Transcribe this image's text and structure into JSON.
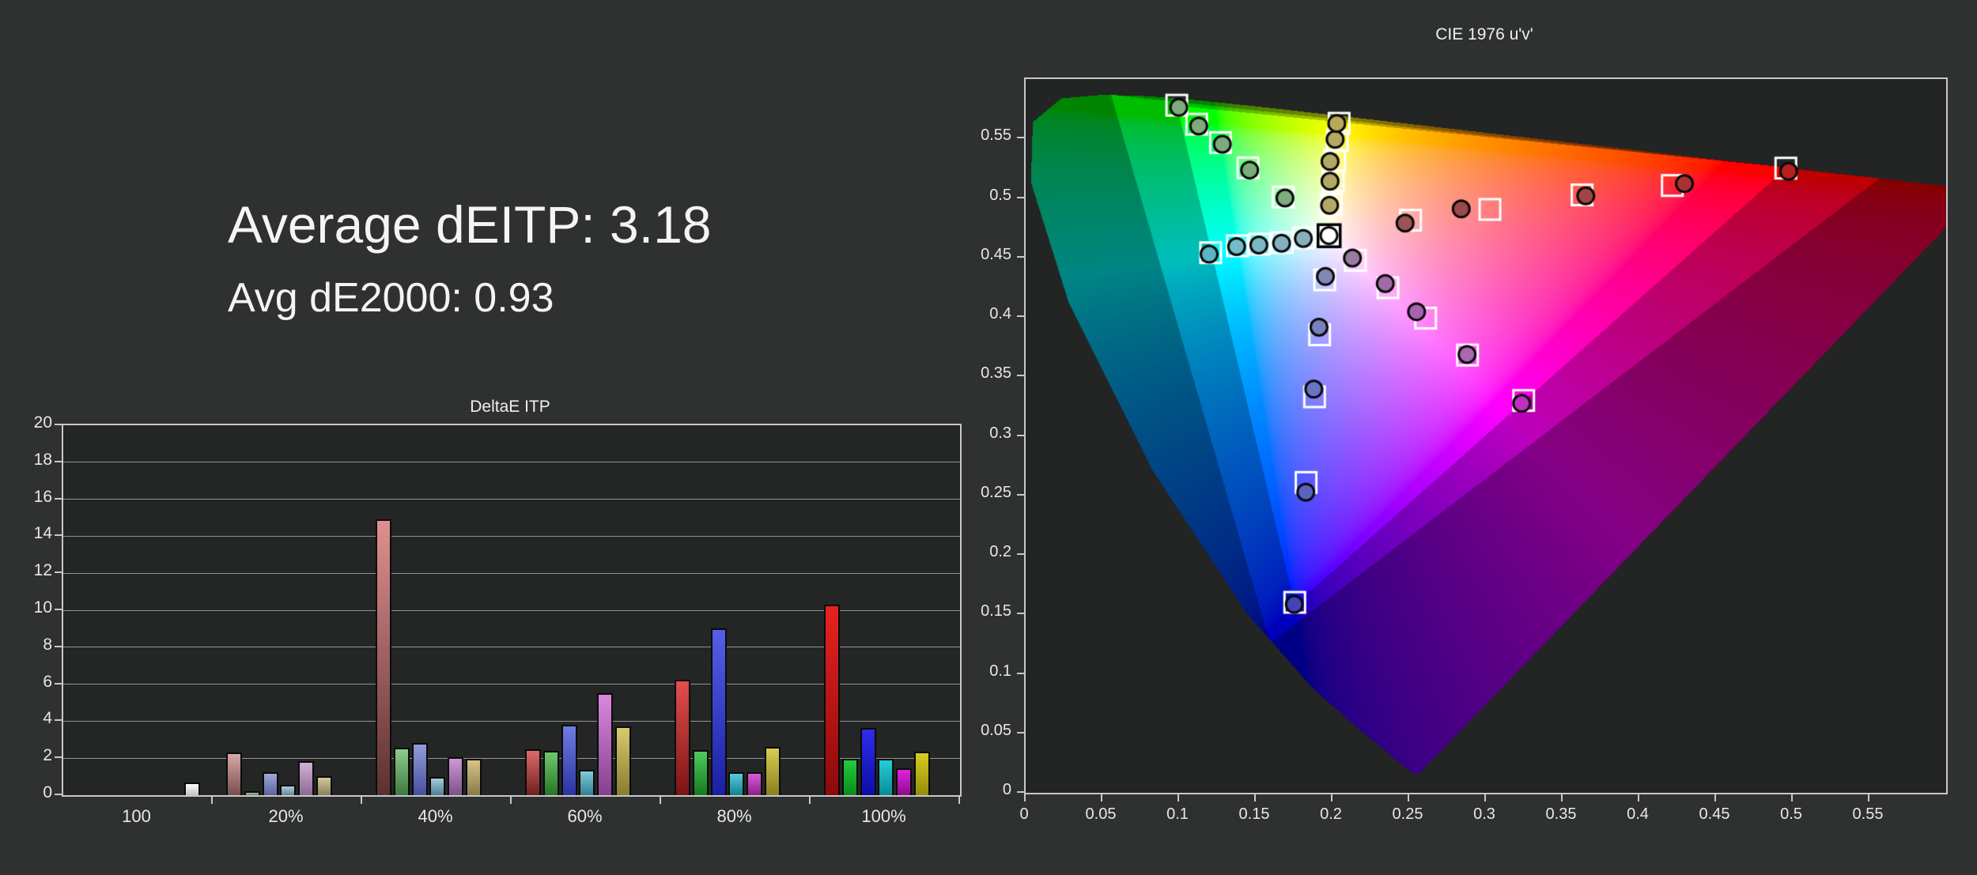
{
  "page_bg": "#2f3030",
  "metrics": {
    "line1": "Average dEITP: 3.18",
    "line2": "Avg dE2000: 0.93"
  },
  "chart_data": [
    {
      "type": "bar",
      "title": "DeltaE ITP",
      "ylabel": "",
      "ylim": [
        0,
        20
      ],
      "yticks": [
        0,
        2,
        4,
        6,
        8,
        10,
        12,
        14,
        16,
        18,
        20
      ],
      "grid": true,
      "legend_position": "none",
      "categories": [
        "100",
        "20%",
        "40%",
        "60%",
        "80%",
        "100%"
      ],
      "bar_slot_offsets": [
        17,
        39.8,
        62.6,
        85.4,
        108.2,
        131
      ],
      "groups": [
        {
          "label": "100",
          "bars": [
            {
              "name": "white",
              "value": 0.7,
              "offset": 153,
              "top": "#ffffff",
              "bottom": "#c2c2c2"
            }
          ]
        },
        {
          "label": "20%",
          "bars": [
            {
              "name": "red",
              "value": 2.3,
              "top": "#d8a8a8",
              "bottom": "#7a4c4c"
            },
            {
              "name": "green",
              "value": 0.2,
              "top": "#a8cca8",
              "bottom": "#5c7a5c"
            },
            {
              "name": "blue",
              "value": 1.25,
              "top": "#a0a8d4",
              "bottom": "#5a62a0"
            },
            {
              "name": "cyan",
              "value": 0.57,
              "top": "#b0ccd8",
              "bottom": "#66849e"
            },
            {
              "name": "magenta",
              "value": 1.85,
              "top": "#d0b0d6",
              "bottom": "#8a6a94"
            },
            {
              "name": "yellow",
              "value": 1.03,
              "top": "#d4c89e",
              "bottom": "#8a7e58"
            }
          ]
        },
        {
          "label": "40%",
          "bars": [
            {
              "name": "red",
              "value": 14.9,
              "top": "#e09090",
              "bottom": "#5c3030"
            },
            {
              "name": "green",
              "value": 2.55,
              "top": "#90cc90",
              "bottom": "#3e7a3e"
            },
            {
              "name": "blue",
              "value": 2.83,
              "top": "#929cda",
              "bottom": "#454fa0"
            },
            {
              "name": "cyan",
              "value": 1.0,
              "top": "#a2ccda",
              "bottom": "#4f7f98"
            },
            {
              "name": "magenta",
              "value": 2.06,
              "top": "#d096d6",
              "bottom": "#7a528a"
            },
            {
              "name": "yellow",
              "value": 1.95,
              "top": "#d6c488",
              "bottom": "#8a7a48"
            }
          ]
        },
        {
          "label": "60%",
          "bars": [
            {
              "name": "red",
              "value": 2.5,
              "top": "#dd6a6a",
              "bottom": "#6e2020"
            },
            {
              "name": "green",
              "value": 2.4,
              "top": "#6ec86e",
              "bottom": "#287428"
            },
            {
              "name": "blue",
              "value": 3.8,
              "top": "#6e7ce0",
              "bottom": "#2a35a4"
            },
            {
              "name": "cyan",
              "value": 1.35,
              "top": "#80cbda",
              "bottom": "#2f7f95"
            },
            {
              "name": "magenta",
              "value": 5.5,
              "top": "#da88e0",
              "bottom": "#84418e"
            },
            {
              "name": "yellow",
              "value": 3.7,
              "top": "#d8ca6e",
              "bottom": "#887c30"
            }
          ]
        },
        {
          "label": "80%",
          "bars": [
            {
              "name": "red",
              "value": 6.25,
              "top": "#e24e4e",
              "bottom": "#7a1414"
            },
            {
              "name": "green",
              "value": 2.45,
              "top": "#4ecb5c",
              "bottom": "#147a20"
            },
            {
              "name": "blue",
              "value": 9.0,
              "top": "#555ee6",
              "bottom": "#1a20a2"
            },
            {
              "name": "cyan",
              "value": 1.25,
              "top": "#55cdda",
              "bottom": "#13808f"
            },
            {
              "name": "magenta",
              "value": 1.25,
              "top": "#dc5adc",
              "bottom": "#8a218a"
            },
            {
              "name": "yellow",
              "value": 2.6,
              "top": "#d8cc52",
              "bottom": "#8a7f1c"
            }
          ]
        },
        {
          "label": "100%",
          "bars": [
            {
              "name": "red",
              "value": 10.3,
              "top": "#e62222",
              "bottom": "#8c0a0a"
            },
            {
              "name": "green",
              "value": 1.95,
              "top": "#22cd3e",
              "bottom": "#0a8c1a"
            },
            {
              "name": "blue",
              "value": 3.65,
              "top": "#2d2dec",
              "bottom": "#0d0da6"
            },
            {
              "name": "cyan",
              "value": 1.95,
              "top": "#22cfd8",
              "bottom": "#0a8c95"
            },
            {
              "name": "magenta",
              "value": 1.45,
              "top": "#e022e0",
              "bottom": "#8c0a8c"
            },
            {
              "name": "yellow",
              "value": 2.35,
              "top": "#d8cd22",
              "bottom": "#968c0a"
            }
          ]
        }
      ]
    },
    {
      "type": "scatter",
      "title": "CIE 1976 u'v'",
      "xlim": [
        0,
        0.6
      ],
      "ylim": [
        0,
        0.6
      ],
      "xticks": [
        "0",
        "0.05",
        "0.1",
        "0.15",
        "0.2",
        "0.25",
        "0.3",
        "0.35",
        "0.4",
        "0.45",
        "0.5",
        "0.55"
      ],
      "yticks": [
        "0",
        "0.05",
        "0.1",
        "0.15",
        "0.2",
        "0.25",
        "0.3",
        "0.35",
        "0.4",
        "0.45",
        "0.5",
        "0.55"
      ],
      "legend_position": "none",
      "marker_legend": {
        "square": "target color",
        "circle": "measured color"
      },
      "gamut_triangles": {
        "p3": [
          [
            0.4964,
            0.5256
          ],
          [
            0.0986,
            0.5777
          ],
          [
            0.1754,
            0.1579
          ]
        ],
        "bt2020": [
          [
            0.5566,
            0.5165
          ],
          [
            0.0556,
            0.5868
          ],
          [
            0.1593,
            0.1258
          ]
        ]
      },
      "dim_inside_2020": 0.74,
      "dim_outside_2020": 0.52,
      "points": [
        {
          "name": "white",
          "target": [
            0.1978,
            0.4683
          ],
          "measured": [
            0.1977,
            0.4685
          ],
          "fill": "#ffffff",
          "special": true
        },
        {
          "name": "red-20",
          "target": [
            0.2509,
            0.4813
          ],
          "measured": [
            0.2473,
            0.4789
          ],
          "fill": "#9a5454"
        },
        {
          "name": "red-40",
          "target": [
            0.3026,
            0.4904
          ],
          "measured": [
            0.2839,
            0.4908
          ],
          "fill": "#9a4a4a"
        },
        {
          "name": "red-60",
          "target": [
            0.3627,
            0.5026
          ],
          "measured": [
            0.3651,
            0.5018
          ],
          "fill": "#a04444"
        },
        {
          "name": "red-80",
          "target": [
            0.4215,
            0.5105
          ],
          "measured": [
            0.4294,
            0.5121
          ],
          "fill": "#aa3232"
        },
        {
          "name": "red-100",
          "target": [
            0.4955,
            0.5251
          ],
          "measured": [
            0.4973,
            0.5224
          ],
          "fill": "#b82020"
        },
        {
          "name": "green-20",
          "target": [
            0.1679,
            0.5008
          ],
          "measured": [
            0.169,
            0.5
          ],
          "fill": "#7cab7c"
        },
        {
          "name": "green-40",
          "target": [
            0.1449,
            0.5254
          ],
          "measured": [
            0.146,
            0.5235
          ],
          "fill": "#7cab7c"
        },
        {
          "name": "green-60",
          "target": [
            0.127,
            0.5466
          ],
          "measured": [
            0.1282,
            0.5452
          ],
          "fill": "#7cab7c"
        },
        {
          "name": "green-80",
          "target": [
            0.1115,
            0.562
          ],
          "measured": [
            0.1128,
            0.5605
          ],
          "fill": "#7cab7c"
        },
        {
          "name": "green-100",
          "target": [
            0.0985,
            0.578
          ],
          "measured": [
            0.0998,
            0.5762
          ],
          "fill": "#7cab7c"
        },
        {
          "name": "blue-20",
          "target": [
            0.1949,
            0.4312
          ],
          "measured": [
            0.1954,
            0.434
          ],
          "fill": "#8088b8"
        },
        {
          "name": "blue-40",
          "target": [
            0.1916,
            0.385
          ],
          "measured": [
            0.1912,
            0.3914
          ],
          "fill": "#7880c0"
        },
        {
          "name": "blue-60",
          "target": [
            0.1883,
            0.3329
          ],
          "measured": [
            0.1878,
            0.3393
          ],
          "fill": "#6a74c4"
        },
        {
          "name": "blue-80",
          "target": [
            0.1828,
            0.2609
          ],
          "measured": [
            0.1826,
            0.2527
          ],
          "fill": "#5a64c0"
        },
        {
          "name": "blue-100",
          "target": [
            0.1754,
            0.1601
          ],
          "measured": [
            0.1751,
            0.1584
          ],
          "fill": "#4444b8"
        },
        {
          "name": "cyan-20",
          "target": [
            0.1813,
            0.4665
          ],
          "measured": [
            0.181,
            0.466
          ],
          "fill": "#88b0bc"
        },
        {
          "name": "cyan-40",
          "target": [
            0.1672,
            0.4625
          ],
          "measured": [
            0.1668,
            0.462
          ],
          "fill": "#84b0c0"
        },
        {
          "name": "cyan-60",
          "target": [
            0.1524,
            0.4612
          ],
          "measured": [
            0.152,
            0.4605
          ],
          "fill": "#7cb6c4"
        },
        {
          "name": "cyan-80",
          "target": [
            0.138,
            0.4598
          ],
          "measured": [
            0.1375,
            0.4592
          ],
          "fill": "#74bcc8"
        },
        {
          "name": "cyan-100",
          "target": [
            0.1206,
            0.454
          ],
          "measured": [
            0.1196,
            0.4528
          ],
          "fill": "#5cb4c4"
        },
        {
          "name": "magenta-20",
          "target": [
            0.2149,
            0.4475
          ],
          "measured": [
            0.213,
            0.4495
          ],
          "fill": "#9a7aa2"
        },
        {
          "name": "magenta-40",
          "target": [
            0.2361,
            0.4246
          ],
          "measured": [
            0.2344,
            0.4281
          ],
          "fill": "#a06aa8"
        },
        {
          "name": "magenta-60",
          "target": [
            0.2607,
            0.399
          ],
          "measured": [
            0.2548,
            0.4044
          ],
          "fill": "#a863b0"
        },
        {
          "name": "magenta-80",
          "target": [
            0.288,
            0.368
          ],
          "measured": [
            0.2877,
            0.3685
          ],
          "fill": "#a86aac"
        },
        {
          "name": "magenta-100",
          "target": [
            0.3246,
            0.3298
          ],
          "measured": [
            0.3233,
            0.3274
          ],
          "fill": "#c030c0"
        },
        {
          "name": "yellow-20",
          "target": [
            0.1991,
            0.4946
          ],
          "measured": [
            0.1981,
            0.4939
          ],
          "fill": "#b3a965"
        },
        {
          "name": "yellow-40",
          "target": [
            0.2005,
            0.5143
          ],
          "measured": [
            0.1984,
            0.5141
          ],
          "fill": "#b3a965"
        },
        {
          "name": "yellow-60",
          "target": [
            0.2014,
            0.5316
          ],
          "measured": [
            0.1984,
            0.5307
          ],
          "fill": "#b3a965"
        },
        {
          "name": "yellow-80",
          "target": [
            0.2031,
            0.548
          ],
          "measured": [
            0.2017,
            0.5493
          ],
          "fill": "#b3a965"
        },
        {
          "name": "yellow-100",
          "target": [
            0.2043,
            0.5628
          ],
          "measured": [
            0.2028,
            0.5627
          ],
          "fill": "#b8a858"
        }
      ]
    }
  ]
}
